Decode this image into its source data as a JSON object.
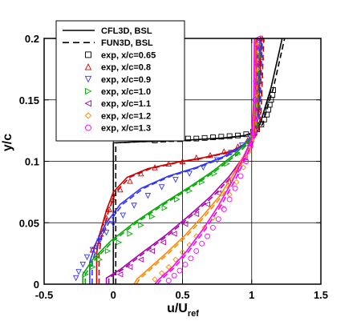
{
  "chart_data": {
    "type": "line",
    "title": "",
    "xlabel": "u/U",
    "xlabel_subscript": "ref",
    "ylabel": "y/c",
    "xlim": [
      -0.5,
      1.5
    ],
    "ylim": [
      0,
      0.2
    ],
    "xticks": [
      -0.5,
      0,
      0.5,
      1,
      1.5
    ],
    "xtick_labels": [
      "-0.5",
      "0",
      "0.5",
      "1",
      "1.5"
    ],
    "yticks": [
      0,
      0.05,
      0.1,
      0.15,
      0.2
    ],
    "ytick_labels": [
      "0",
      "0.05",
      "0.1",
      "0.15",
      "0.2"
    ],
    "grid": true,
    "legend_position": "top-left",
    "legend": [
      {
        "label": "CFL3D, BSL",
        "style": "solid"
      },
      {
        "label": "FUN3D, BSL",
        "style": "dashed"
      },
      {
        "label": "exp, x/c=0.65",
        "marker": "square",
        "color": "#000000"
      },
      {
        "label": "exp, x/c=0.8",
        "marker": "triangle-up",
        "color": "#cc0000"
      },
      {
        "label": "exp, x/c=0.9",
        "marker": "triangle-down",
        "color": "#3333ff"
      },
      {
        "label": "exp, x/c=1.0",
        "marker": "triangle-right",
        "color": "#00aa00"
      },
      {
        "label": "exp, x/c=1.1",
        "marker": "triangle-left",
        "color": "#aa00aa"
      },
      {
        "label": "exp, x/c=1.2",
        "marker": "diamond",
        "color": "#ff8800"
      },
      {
        "label": "exp, x/c=1.3",
        "marker": "circle",
        "color": "#ff00ff"
      }
    ],
    "series": [
      {
        "station": "0.65",
        "color": "#000000",
        "marker": "square",
        "cfd": [
          [
            0.0,
            0.0
          ],
          [
            0.0,
            0.115
          ],
          [
            0.2,
            0.116
          ],
          [
            0.5,
            0.117
          ],
          [
            0.8,
            0.119
          ],
          [
            0.95,
            0.121
          ],
          [
            1.02,
            0.124
          ],
          [
            1.06,
            0.13
          ],
          [
            1.1,
            0.145
          ],
          [
            1.14,
            0.16
          ],
          [
            1.17,
            0.175
          ],
          [
            1.2,
            0.19
          ],
          [
            1.22,
            0.2
          ]
        ],
        "exp": [
          [
            0.3,
            0.117
          ],
          [
            0.36,
            0.1175
          ],
          [
            0.42,
            0.118
          ],
          [
            0.48,
            0.118
          ],
          [
            0.54,
            0.1185
          ],
          [
            0.6,
            0.1185
          ],
          [
            0.66,
            0.119
          ],
          [
            0.72,
            0.1195
          ],
          [
            0.78,
            0.12
          ],
          [
            0.84,
            0.1205
          ],
          [
            0.9,
            0.121
          ],
          [
            0.96,
            0.122
          ],
          [
            1.01,
            0.124
          ],
          [
            1.04,
            0.126
          ],
          [
            1.07,
            0.13
          ],
          [
            1.09,
            0.134
          ],
          [
            1.11,
            0.138
          ],
          [
            1.12,
            0.142
          ],
          [
            1.13,
            0.146
          ],
          [
            1.14,
            0.15
          ],
          [
            1.15,
            0.154
          ],
          [
            1.155,
            0.158
          ]
        ]
      },
      {
        "station": "0.8",
        "color": "#cc0000",
        "marker": "triangle-up",
        "cfd": [
          [
            -0.12,
            0.0
          ],
          [
            -0.12,
            0.025
          ],
          [
            -0.1,
            0.04
          ],
          [
            -0.05,
            0.06
          ],
          [
            0.0,
            0.075
          ],
          [
            0.1,
            0.087
          ],
          [
            0.25,
            0.094
          ],
          [
            0.45,
            0.099
          ],
          [
            0.65,
            0.103
          ],
          [
            0.85,
            0.108
          ],
          [
            0.98,
            0.116
          ],
          [
            1.03,
            0.124
          ],
          [
            1.05,
            0.14
          ],
          [
            1.06,
            0.17
          ],
          [
            1.07,
            0.2
          ]
        ],
        "exp": [
          [
            -0.15,
            0.028
          ],
          [
            -0.13,
            0.031
          ],
          [
            -0.11,
            0.035
          ],
          [
            -0.09,
            0.041
          ],
          [
            -0.07,
            0.047
          ],
          [
            -0.05,
            0.054
          ],
          [
            -0.03,
            0.061
          ],
          [
            0.0,
            0.069
          ],
          [
            0.05,
            0.077
          ],
          [
            0.12,
            0.084
          ],
          [
            0.2,
            0.09
          ],
          [
            0.3,
            0.095
          ],
          [
            0.4,
            0.098
          ],
          [
            0.5,
            0.1
          ],
          [
            0.6,
            0.103
          ],
          [
            0.7,
            0.105
          ],
          [
            0.8,
            0.108
          ],
          [
            0.9,
            0.112
          ],
          [
            0.97,
            0.117
          ],
          [
            1.02,
            0.123
          ],
          [
            1.04,
            0.13
          ],
          [
            1.05,
            0.14
          ],
          [
            1.06,
            0.155
          ],
          [
            1.065,
            0.17
          ],
          [
            1.07,
            0.185
          ],
          [
            1.075,
            0.2
          ]
        ]
      },
      {
        "station": "0.9",
        "color": "#3333ff",
        "marker": "triangle-down",
        "cfd": [
          [
            -0.17,
            0.0
          ],
          [
            -0.17,
            0.018
          ],
          [
            -0.12,
            0.035
          ],
          [
            -0.05,
            0.05
          ],
          [
            0.05,
            0.065
          ],
          [
            0.2,
            0.078
          ],
          [
            0.4,
            0.088
          ],
          [
            0.6,
            0.095
          ],
          [
            0.8,
            0.104
          ],
          [
            0.95,
            0.114
          ],
          [
            1.02,
            0.124
          ],
          [
            1.04,
            0.14
          ],
          [
            1.05,
            0.17
          ],
          [
            1.06,
            0.2
          ]
        ],
        "exp": [
          [
            -0.27,
            0.005
          ],
          [
            -0.25,
            0.01
          ],
          [
            -0.22,
            0.016
          ],
          [
            -0.19,
            0.022
          ],
          [
            -0.15,
            0.028
          ],
          [
            -0.1,
            0.035
          ],
          [
            -0.05,
            0.042
          ],
          [
            0.0,
            0.049
          ],
          [
            0.07,
            0.056
          ],
          [
            0.15,
            0.064
          ],
          [
            0.25,
            0.072
          ],
          [
            0.35,
            0.079
          ],
          [
            0.45,
            0.085
          ],
          [
            0.55,
            0.09
          ],
          [
            0.65,
            0.095
          ],
          [
            0.75,
            0.101
          ],
          [
            0.85,
            0.107
          ],
          [
            0.93,
            0.113
          ],
          [
            0.99,
            0.12
          ],
          [
            1.02,
            0.126
          ],
          [
            1.04,
            0.135
          ],
          [
            1.05,
            0.15
          ],
          [
            1.055,
            0.17
          ],
          [
            1.06,
            0.19
          ]
        ]
      },
      {
        "station": "1.0",
        "color": "#00aa00",
        "marker": "triangle-right",
        "cfd": [
          [
            -0.22,
            0.0
          ],
          [
            -0.22,
            0.008
          ],
          [
            -0.15,
            0.02
          ],
          [
            -0.02,
            0.035
          ],
          [
            0.15,
            0.05
          ],
          [
            0.35,
            0.065
          ],
          [
            0.55,
            0.079
          ],
          [
            0.72,
            0.092
          ],
          [
            0.88,
            0.106
          ],
          [
            0.98,
            0.117
          ],
          [
            1.02,
            0.125
          ],
          [
            1.03,
            0.15
          ],
          [
            1.04,
            0.2
          ]
        ],
        "exp": [
          [
            -0.2,
            0.008
          ],
          [
            -0.15,
            0.014
          ],
          [
            -0.1,
            0.02
          ],
          [
            -0.04,
            0.027
          ],
          [
            0.04,
            0.034
          ],
          [
            0.12,
            0.041
          ],
          [
            0.2,
            0.048
          ],
          [
            0.28,
            0.055
          ],
          [
            0.37,
            0.062
          ],
          [
            0.46,
            0.069
          ],
          [
            0.55,
            0.076
          ],
          [
            0.64,
            0.083
          ],
          [
            0.73,
            0.09
          ],
          [
            0.82,
            0.098
          ],
          [
            0.9,
            0.106
          ],
          [
            0.97,
            0.114
          ],
          [
            1.01,
            0.122
          ],
          [
            1.03,
            0.13
          ],
          [
            1.04,
            0.145
          ],
          [
            1.045,
            0.165
          ],
          [
            1.05,
            0.185
          ]
        ]
      },
      {
        "station": "1.1",
        "color": "#aa00aa",
        "marker": "triangle-left",
        "cfd": [
          [
            -0.05,
            0.0
          ],
          [
            -0.05,
            0.005
          ],
          [
            0.05,
            0.012
          ],
          [
            0.2,
            0.025
          ],
          [
            0.38,
            0.04
          ],
          [
            0.55,
            0.056
          ],
          [
            0.7,
            0.071
          ],
          [
            0.84,
            0.088
          ],
          [
            0.95,
            0.105
          ],
          [
            1.01,
            0.12
          ],
          [
            1.02,
            0.15
          ],
          [
            1.03,
            0.2
          ]
        ],
        "exp": [
          [
            0.05,
            0.008
          ],
          [
            0.12,
            0.014
          ],
          [
            0.2,
            0.02
          ],
          [
            0.28,
            0.027
          ],
          [
            0.36,
            0.034
          ],
          [
            0.44,
            0.041
          ],
          [
            0.52,
            0.049
          ],
          [
            0.6,
            0.057
          ],
          [
            0.68,
            0.065
          ],
          [
            0.76,
            0.074
          ],
          [
            0.83,
            0.083
          ],
          [
            0.89,
            0.093
          ],
          [
            0.95,
            0.103
          ],
          [
            0.99,
            0.114
          ],
          [
            1.02,
            0.125
          ],
          [
            1.03,
            0.14
          ],
          [
            1.035,
            0.16
          ],
          [
            1.04,
            0.18
          ],
          [
            1.045,
            0.2
          ]
        ]
      },
      {
        "station": "1.2",
        "color": "#ff8800",
        "marker": "diamond",
        "cfd": [
          [
            0.15,
            0.0
          ],
          [
            0.17,
            0.004
          ],
          [
            0.25,
            0.012
          ],
          [
            0.38,
            0.025
          ],
          [
            0.52,
            0.04
          ],
          [
            0.65,
            0.056
          ],
          [
            0.77,
            0.072
          ],
          [
            0.87,
            0.09
          ],
          [
            0.96,
            0.108
          ],
          [
            1.01,
            0.121
          ],
          [
            1.02,
            0.15
          ],
          [
            1.025,
            0.2
          ]
        ],
        "exp": [
          [
            0.3,
            0.004
          ],
          [
            0.35,
            0.009
          ],
          [
            0.4,
            0.014
          ],
          [
            0.45,
            0.02
          ],
          [
            0.5,
            0.026
          ],
          [
            0.55,
            0.032
          ],
          [
            0.6,
            0.039
          ],
          [
            0.66,
            0.046
          ],
          [
            0.72,
            0.054
          ],
          [
            0.78,
            0.063
          ],
          [
            0.84,
            0.073
          ],
          [
            0.89,
            0.083
          ],
          [
            0.94,
            0.095
          ],
          [
            0.98,
            0.108
          ],
          [
            1.01,
            0.12
          ],
          [
            1.03,
            0.135
          ],
          [
            1.035,
            0.155
          ],
          [
            1.04,
            0.175
          ],
          [
            1.045,
            0.195
          ]
        ]
      },
      {
        "station": "1.3",
        "color": "#ff00ff",
        "marker": "circle",
        "cfd": [
          [
            0.3,
            0.0
          ],
          [
            0.33,
            0.004
          ],
          [
            0.42,
            0.013
          ],
          [
            0.53,
            0.027
          ],
          [
            0.65,
            0.045
          ],
          [
            0.76,
            0.064
          ],
          [
            0.86,
            0.084
          ],
          [
            0.94,
            0.103
          ],
          [
            1.0,
            0.119
          ],
          [
            1.015,
            0.15
          ],
          [
            1.02,
            0.2
          ]
        ],
        "exp": [
          [
            0.4,
            0.003
          ],
          [
            0.44,
            0.007
          ],
          [
            0.48,
            0.011
          ],
          [
            0.52,
            0.016
          ],
          [
            0.56,
            0.021
          ],
          [
            0.6,
            0.027
          ],
          [
            0.64,
            0.033
          ],
          [
            0.68,
            0.039
          ],
          [
            0.72,
            0.046
          ],
          [
            0.76,
            0.053
          ],
          [
            0.8,
            0.061
          ],
          [
            0.84,
            0.069
          ],
          [
            0.88,
            0.078
          ],
          [
            0.92,
            0.088
          ],
          [
            0.96,
            0.1
          ],
          [
            0.99,
            0.112
          ],
          [
            1.01,
            0.123
          ],
          [
            1.02,
            0.135
          ],
          [
            1.025,
            0.15
          ],
          [
            1.03,
            0.165
          ],
          [
            1.035,
            0.18
          ],
          [
            1.04,
            0.195
          ]
        ]
      }
    ]
  }
}
